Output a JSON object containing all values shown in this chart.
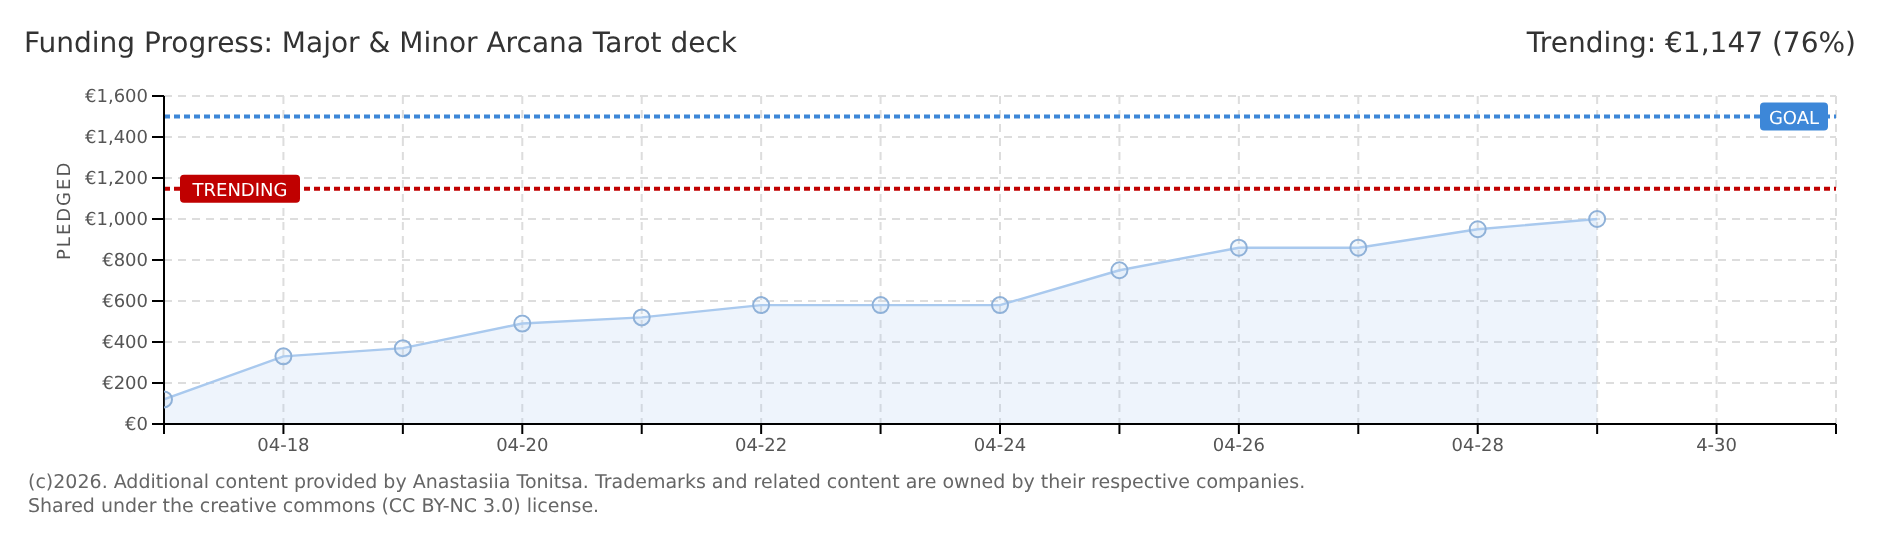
{
  "chart_data": {
    "type": "area",
    "title": "Funding Progress: Major & Minor Arcana Tarot deck",
    "subtitle": "Trending: €1,147 (76%)",
    "ylabel": "PLEDGED",
    "x": [
      "--04-17",
      "--04-18",
      "--04-19",
      "--04-20",
      "--04-21",
      "--04-22",
      "--04-23",
      "--04-24",
      "--04-25",
      "--04-26",
      "--04-27",
      "--04-28",
      "--04-29"
    ],
    "series": [
      {
        "color": "#a9c9ee",
        "values": [
          120,
          330,
          370,
          490,
          520,
          580,
          580,
          580,
          750,
          860,
          860,
          950,
          1000
        ]
      }
    ],
    "xlim": [
      "--04-17",
      "--05-01"
    ],
    "xticks": [
      {
        "value": "--04-17",
        "label": null
      },
      {
        "value": "--04-18",
        "label": "04-18"
      },
      {
        "value": "--04-19",
        "label": null
      },
      {
        "value": "--04-20",
        "label": "04-20"
      },
      {
        "value": "--04-21",
        "label": null
      },
      {
        "value": "--04-22",
        "label": "04-22"
      },
      {
        "value": "--04-23",
        "label": null
      },
      {
        "value": "--04-24",
        "label": "04-24"
      },
      {
        "value": "--04-25",
        "label": null
      },
      {
        "value": "--04-26",
        "label": "04-26"
      },
      {
        "value": "--04-27",
        "label": null
      },
      {
        "value": "--04-28",
        "label": "04-28"
      },
      {
        "value": "--04-29",
        "label": null
      },
      {
        "value": "--04-30",
        "label": "4-30"
      },
      {
        "value": "--05-01",
        "label": null
      }
    ],
    "ylim": [
      0,
      1600
    ],
    "yticks": [
      {
        "value": 0,
        "label": "€0"
      },
      {
        "value": 200,
        "label": "€200"
      },
      {
        "value": 400,
        "label": "€400"
      },
      {
        "value": 600,
        "label": "€600"
      },
      {
        "value": 800,
        "label": "€800"
      },
      {
        "value": 1000,
        "label": "€1,000"
      },
      {
        "value": 1200,
        "label": "€1,200"
      },
      {
        "value": 1400,
        "label": "€1,400"
      },
      {
        "value": 1600,
        "label": "€1,600"
      }
    ],
    "ref_lines": [
      {
        "axis": "y",
        "value": 1500,
        "label": "GOAL",
        "color": "#3d87d8",
        "line_style": "dotted"
      },
      {
        "axis": "y",
        "value": 1147,
        "label": "TRENDING",
        "color": "#c00000",
        "line_style": "dotted"
      }
    ],
    "grid": true,
    "marker": "circle",
    "annotations": [
      "(c)2026. Additional content provided by Anastasiia Tonitsa. Trademarks and related content are owned by their respective companies.",
      "Shared under the creative commons (CC BY-NC 3.0) license."
    ]
  }
}
